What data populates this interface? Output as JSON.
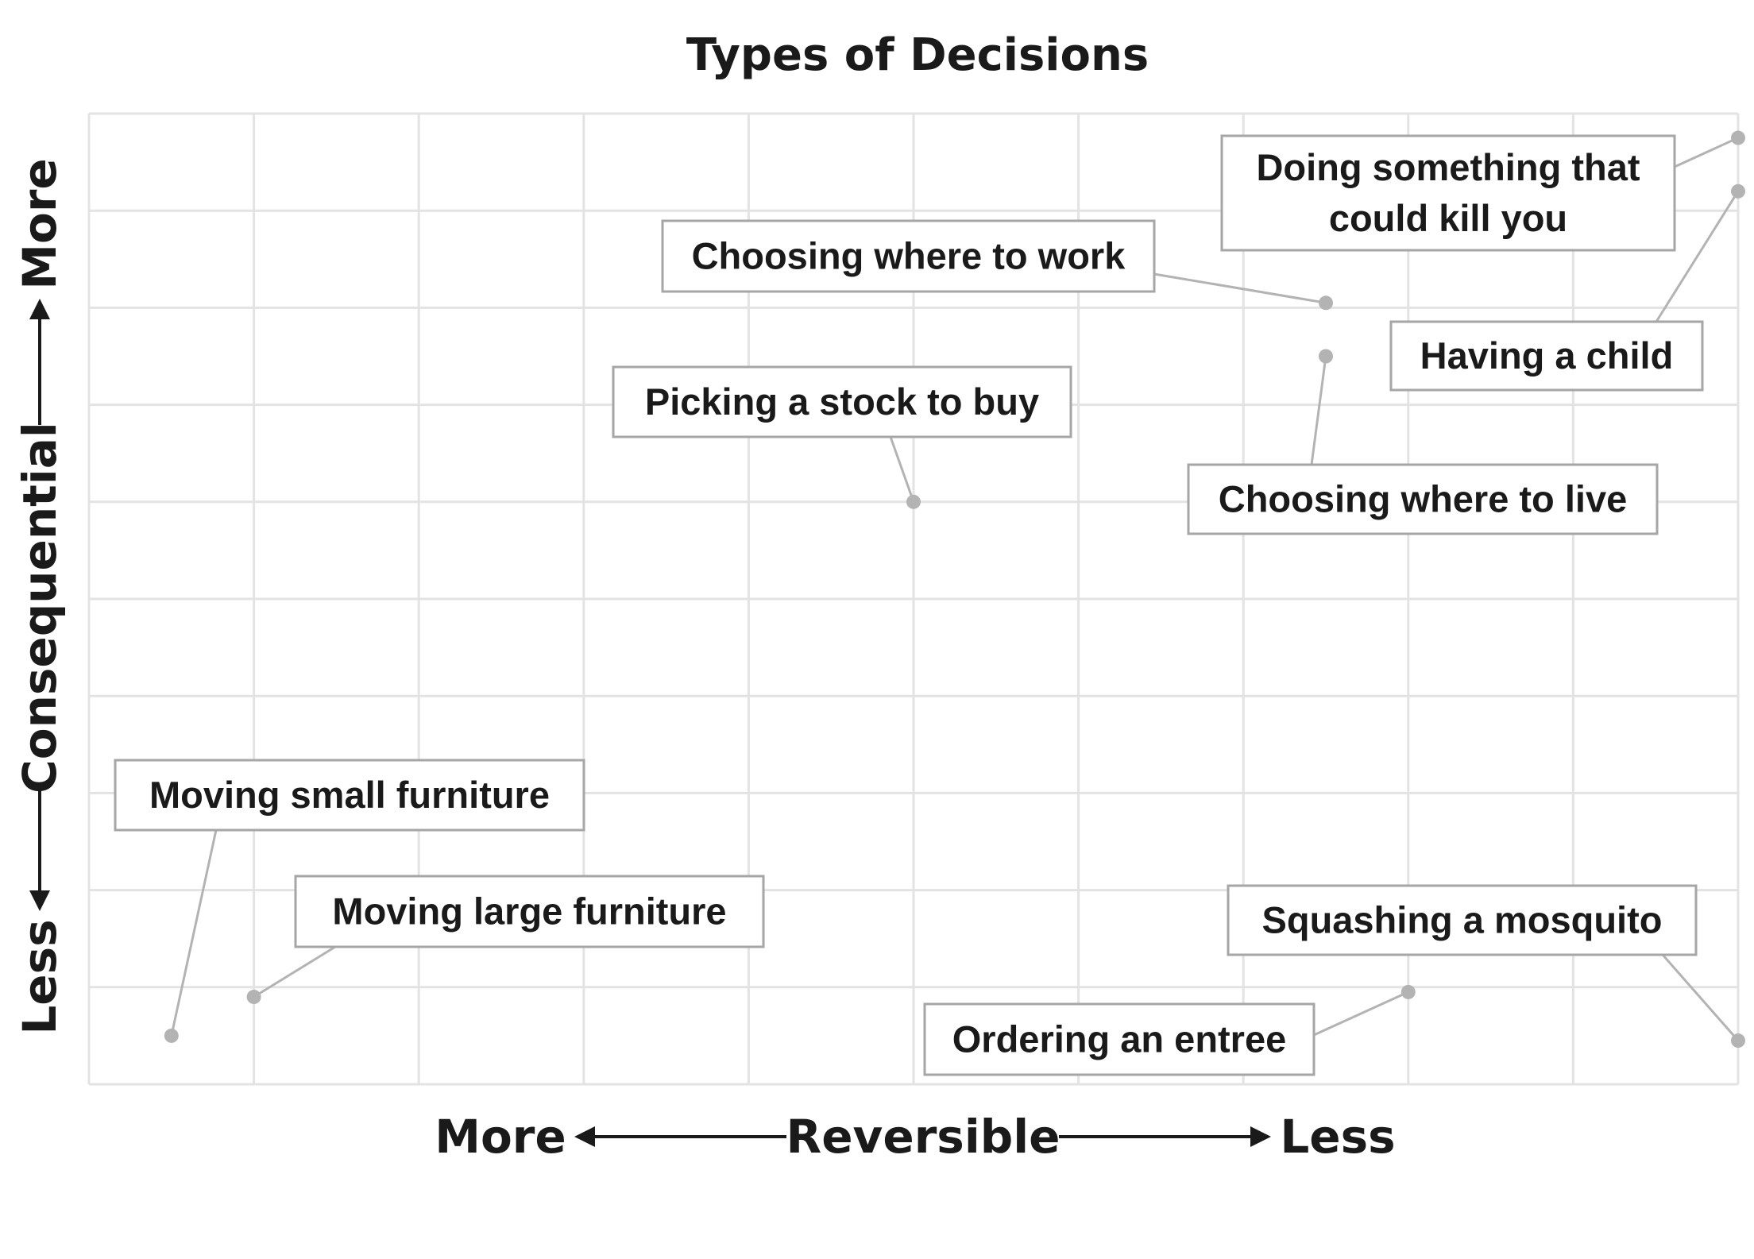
{
  "chart_data": {
    "type": "scatter",
    "title": "Types of Decisions",
    "x_axis": {
      "label": "Reversible",
      "left_end": "More",
      "right_end": "Less",
      "range": [
        0,
        10
      ],
      "direction": "left = more reversible, right = less reversible"
    },
    "y_axis": {
      "label": "Consequential",
      "bottom_end": "Less",
      "top_end": "More",
      "range": [
        0,
        10
      ],
      "direction": "bottom = less consequential, top = more consequential"
    },
    "grid": true,
    "points": [
      {
        "label": "Doing something that could kill you",
        "x": 10.0,
        "y": 9.75
      },
      {
        "label": "Having a child",
        "x": 10.0,
        "y": 9.2
      },
      {
        "label": "Choosing where to work",
        "x": 7.5,
        "y": 8.05
      },
      {
        "label": "Choosing where to live",
        "x": 7.5,
        "y": 7.5
      },
      {
        "label": "Picking a stock to buy",
        "x": 5.0,
        "y": 6.0
      },
      {
        "label": "Moving small furniture",
        "x": 0.5,
        "y": 0.5
      },
      {
        "label": "Moving large furniture",
        "x": 1.0,
        "y": 0.9
      },
      {
        "label": "Squashing a mosquito",
        "x": 10.0,
        "y": 0.45
      },
      {
        "label": "Ordering an entree",
        "x": 8.0,
        "y": 0.95
      }
    ]
  }
}
